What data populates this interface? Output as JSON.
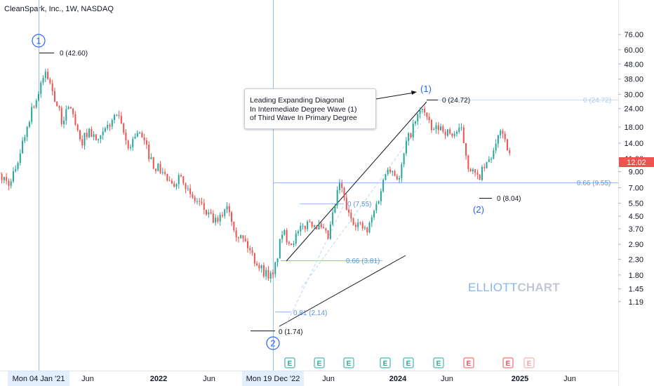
{
  "header": {
    "title": "CleanSpark, Inc., 1W, NASDAQ"
  },
  "colors": {
    "up": "#26a69a",
    "down": "#ef5350",
    "wave": "#2962ff",
    "fib": "#90bff9",
    "note_border": "#c8ccd6"
  },
  "chart_data": {
    "type": "candlestick",
    "scale": "log",
    "title": "CleanSpark, Inc., 1W, NASDAQ",
    "ylim": [
      1.1,
      80
    ],
    "y_ticks": [
      "76.00",
      "60.00",
      "48.00",
      "38.00",
      "30.00",
      "24.00",
      "18.00",
      "14.00",
      "11.00",
      "9.00",
      "7.00",
      "5.50",
      "4.50",
      "3.70",
      "2.90",
      "2.30",
      "1.80",
      "1.45",
      "1.19"
    ],
    "last_price": "12.02",
    "x_ticks": [
      "Mon 04 Jan '21",
      "Jun",
      "2022",
      "Jun",
      "Mon 19 Dec '22",
      "Jun",
      "2024",
      "Jun",
      "2025",
      "Jun"
    ],
    "x_range": [
      "2020-08-03",
      "2025-07-28"
    ],
    "series": [
      {
        "points": [
          [
            "2020-08-17",
            9.0
          ],
          [
            "2020-10-12",
            7.5
          ],
          [
            "2020-11-16",
            14
          ],
          [
            "2020-12-14",
            24
          ],
          [
            "2021-01-04",
            30
          ],
          [
            "2021-01-25",
            42.6
          ],
          [
            "2021-02-15",
            32
          ],
          [
            "2021-03-15",
            20
          ],
          [
            "2021-04-12",
            25
          ],
          [
            "2021-05-10",
            14
          ],
          [
            "2021-06-07",
            17
          ],
          [
            "2021-07-05",
            14
          ],
          [
            "2021-08-02",
            18
          ],
          [
            "2021-08-30",
            22
          ],
          [
            "2021-09-13",
            18
          ],
          [
            "2021-10-04",
            13
          ],
          [
            "2021-11-01",
            17
          ],
          [
            "2021-11-22",
            14
          ],
          [
            "2021-12-20",
            10
          ],
          [
            "2022-01-17",
            9
          ],
          [
            "2022-02-14",
            7
          ],
          [
            "2022-03-14",
            9
          ],
          [
            "2022-04-11",
            6
          ],
          [
            "2022-05-09",
            5.5
          ],
          [
            "2022-06-06",
            4.5
          ],
          [
            "2022-07-04",
            4.0
          ],
          [
            "2022-08-01",
            5.5
          ],
          [
            "2022-08-29",
            3.5
          ],
          [
            "2022-09-26",
            3.0
          ],
          [
            "2022-10-24",
            2.3
          ],
          [
            "2022-11-21",
            1.9
          ],
          [
            "2022-12-19",
            1.74
          ],
          [
            "2023-01-16",
            3.5
          ],
          [
            "2023-02-13",
            3.0
          ],
          [
            "2023-03-13",
            3.6
          ],
          [
            "2023-04-10",
            4.2
          ],
          [
            "2023-05-08",
            3.8
          ],
          [
            "2023-06-05",
            3.2
          ],
          [
            "2023-07-10",
            7.55
          ],
          [
            "2023-08-07",
            4.5
          ],
          [
            "2023-09-04",
            4.0
          ],
          [
            "2023-10-02",
            3.5
          ],
          [
            "2023-11-06",
            6.0
          ],
          [
            "2023-12-04",
            10
          ],
          [
            "2024-01-08",
            8
          ],
          [
            "2024-01-29",
            14
          ],
          [
            "2024-02-19",
            18
          ],
          [
            "2024-03-18",
            24.72
          ],
          [
            "2024-04-15",
            17
          ],
          [
            "2024-05-13",
            18
          ],
          [
            "2024-06-10",
            16
          ],
          [
            "2024-07-15",
            17
          ],
          [
            "2024-08-05",
            10
          ],
          [
            "2024-09-02",
            8.04
          ],
          [
            "2024-09-30",
            10
          ],
          [
            "2024-10-28",
            13
          ],
          [
            "2024-11-11",
            18
          ],
          [
            "2024-11-25",
            15
          ],
          [
            "2024-12-09",
            12.02
          ]
        ]
      }
    ]
  },
  "annotations": {
    "wave_circle_1": "1",
    "wave_circle_2": "2",
    "wave_paren_1": "(1)",
    "wave_paren_2": "(2)",
    "lbl_42": "0 (42.60)",
    "lbl_24": "0 (24.72)",
    "lbl_24_right": "0 (24.72)",
    "lbl_174": "0 (1.74)",
    "lbl_804": "0 (8.04)",
    "lbl_955": "0.66 (9.55)",
    "lbl_755": "0 (7.55)",
    "lbl_066": "0.66 (3.81)",
    "lbl_081": "0.81 (2.14)",
    "note": [
      "Leading Expanding Diagonal",
      "In Intermediate Degree Wave (1)",
      "of Third Wave In Primary Degree"
    ],
    "earnings": [
      "E",
      "E",
      "E",
      "E",
      "E",
      "E",
      "E",
      "E",
      "E"
    ],
    "watermark_a": "ELLIOTT",
    "watermark_b": "CHART"
  }
}
